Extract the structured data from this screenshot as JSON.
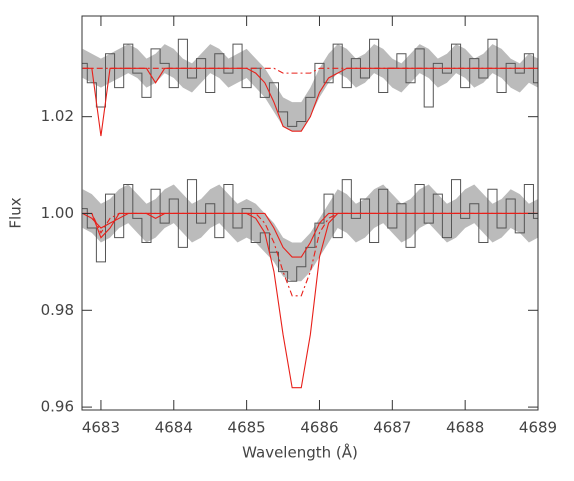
{
  "chart_data": {
    "type": "spectrum",
    "x_label": "Wavelength (Å)",
    "y_label": "Flux",
    "xlim": [
      4682.74,
      4689.0
    ],
    "ylim": [
      0.9594,
      1.0408
    ],
    "xticks": [
      4683,
      4684,
      4685,
      4686,
      4687,
      4688,
      4689
    ],
    "yticks": [
      0.96,
      0.98,
      {
        "value": 1,
        "label": "1.00"
      },
      1.02
    ],
    "x": [
      4682.75,
      4682.875,
      4683,
      4683.125,
      4683.25,
      4683.375,
      4683.5,
      4683.625,
      4683.75,
      4683.875,
      4684,
      4684.125,
      4684.25,
      4684.375,
      4684.5,
      4684.625,
      4684.75,
      4684.875,
      4685,
      4685.125,
      4685.25,
      4685.375,
      4685.5,
      4685.625,
      4685.75,
      4685.875,
      4686,
      4686.125,
      4686.25,
      4686.375,
      4686.5,
      4686.625,
      4686.75,
      4686.875,
      4687,
      4687.125,
      4687.25,
      4687.375,
      4687.5,
      4687.625,
      4687.75,
      4687.875,
      4688,
      4688.125,
      4688.25,
      4688.375,
      4688.5,
      4688.625,
      4688.75,
      4688.875,
      4689
    ],
    "series": [
      {
        "style": "band",
        "color": "#bbbbbb",
        "lower": [
          1.028,
          1.027,
          1.026,
          1.027,
          1.028,
          1.029,
          1.028,
          1.026,
          1.027,
          1.029,
          1.028,
          1.026,
          1.025,
          1.027,
          1.029,
          1.028,
          1.026,
          1.027,
          1.028,
          1.026,
          1.024,
          1.021,
          1.018,
          1.017,
          1.017,
          1.02,
          1.024,
          1.027,
          1.029,
          1.028,
          1.026,
          1.027,
          1.029,
          1.028,
          1.026,
          1.025,
          1.027,
          1.029,
          1.028,
          1.026,
          1.027,
          1.029,
          1.028,
          1.026,
          1.027,
          1.029,
          1.028,
          1.026,
          1.025,
          1.027,
          1.026
        ],
        "upper": [
          1.034,
          1.033,
          1.032,
          1.033,
          1.034,
          1.035,
          1.034,
          1.032,
          1.033,
          1.035,
          1.034,
          1.032,
          1.031,
          1.033,
          1.035,
          1.034,
          1.032,
          1.033,
          1.034,
          1.032,
          1.03,
          1.027,
          1.024,
          1.023,
          1.023,
          1.026,
          1.03,
          1.033,
          1.035,
          1.034,
          1.032,
          1.033,
          1.035,
          1.034,
          1.032,
          1.031,
          1.033,
          1.035,
          1.034,
          1.032,
          1.033,
          1.035,
          1.034,
          1.032,
          1.033,
          1.035,
          1.034,
          1.032,
          1.031,
          1.033,
          1.032
        ]
      },
      {
        "style": "band",
        "color": "#bbbbbb",
        "lower": [
          0.997,
          0.996,
          0.994,
          0.995,
          0.997,
          0.998,
          0.996,
          0.994,
          0.995,
          0.997,
          0.998,
          0.996,
          0.994,
          0.995,
          0.997,
          0.998,
          0.996,
          0.994,
          0.995,
          0.994,
          0.992,
          0.99,
          0.987,
          0.986,
          0.986,
          0.988,
          0.991,
          0.994,
          0.997,
          0.996,
          0.994,
          0.995,
          0.997,
          0.998,
          0.996,
          0.994,
          0.995,
          0.997,
          0.998,
          0.996,
          0.994,
          0.995,
          0.997,
          0.998,
          0.996,
          0.994,
          0.995,
          0.997,
          0.996,
          0.994,
          0.995
        ],
        "upper": [
          1.005,
          1.004,
          1.002,
          1.003,
          1.005,
          1.006,
          1.004,
          1.002,
          1.003,
          1.005,
          1.006,
          1.004,
          1.002,
          1.003,
          1.005,
          1.006,
          1.004,
          1.002,
          1.003,
          1.002,
          1.0,
          0.998,
          0.995,
          0.994,
          0.994,
          0.996,
          0.999,
          1.002,
          1.005,
          1.004,
          1.002,
          1.003,
          1.005,
          1.006,
          1.004,
          1.002,
          1.003,
          1.005,
          1.006,
          1.004,
          1.002,
          1.003,
          1.005,
          1.006,
          1.004,
          1.002,
          1.003,
          1.005,
          1.004,
          1.002,
          1.003
        ]
      },
      {
        "style": "steps",
        "color": "#555555",
        "values": [
          1.031,
          1.027,
          1.022,
          1.033,
          1.026,
          1.035,
          1.029,
          1.024,
          1.034,
          1.031,
          1.026,
          1.036,
          1.028,
          1.032,
          1.025,
          1.033,
          1.029,
          1.035,
          1.026,
          1.03,
          1.024,
          1.027,
          1.021,
          1.018,
          1.019,
          1.024,
          1.031,
          1.027,
          1.035,
          1.026,
          1.032,
          1.028,
          1.036,
          1.025,
          1.03,
          1.033,
          1.027,
          1.034,
          1.022,
          1.031,
          1.029,
          1.035,
          1.026,
          1.032,
          1.028,
          1.036,
          1.025,
          1.031,
          1.029,
          1.033,
          1.027
        ]
      },
      {
        "style": "steps",
        "color": "#555555",
        "values": [
          1.001,
          0.997,
          0.99,
          1.004,
          0.995,
          1.006,
          0.999,
          0.994,
          1.005,
          0.998,
          1.003,
          0.993,
          1.007,
          0.998,
          1.002,
          0.995,
          1.006,
          0.997,
          1.001,
          0.994,
          0.996,
          0.992,
          0.988,
          0.986,
          0.989,
          0.993,
          0.998,
          1.004,
          0.995,
          1.007,
          0.999,
          1.003,
          0.994,
          1.005,
          0.997,
          1.002,
          0.993,
          1.006,
          0.998,
          1.004,
          0.995,
          1.007,
          0.999,
          1.002,
          0.994,
          1.005,
          0.997,
          1.003,
          0.996,
          1.006,
          0.999
        ]
      },
      {
        "style": "line",
        "color": "#e8201a",
        "dash": true,
        "values": [
          1.03,
          1.03,
          1.03,
          1.03,
          1.03,
          1.03,
          1.03,
          1.03,
          1.03,
          1.03,
          1.03,
          1.03,
          1.03,
          1.03,
          1.03,
          1.03,
          1.03,
          1.03,
          1.03,
          1.03,
          1.03,
          1.03,
          1.029,
          1.029,
          1.029,
          1.029,
          1.03,
          1.03,
          1.03,
          1.03,
          1.03,
          1.03,
          1.03,
          1.03,
          1.03,
          1.03,
          1.03,
          1.03,
          1.03,
          1.03,
          1.03,
          1.03,
          1.03,
          1.03,
          1.03,
          1.03,
          1.03,
          1.03,
          1.03,
          1.03,
          1.03
        ]
      },
      {
        "style": "line",
        "color": "#e8201a",
        "values": [
          1.03,
          1.03,
          1.016,
          1.03,
          1.03,
          1.03,
          1.03,
          1.03,
          1.027,
          1.03,
          1.03,
          1.03,
          1.03,
          1.03,
          1.03,
          1.03,
          1.03,
          1.03,
          1.03,
          1.029,
          1.027,
          1.023,
          1.018,
          1.017,
          1.017,
          1.02,
          1.025,
          1.028,
          1.029,
          1.03,
          1.03,
          1.03,
          1.03,
          1.03,
          1.03,
          1.03,
          1.03,
          1.03,
          1.03,
          1.03,
          1.03,
          1.03,
          1.03,
          1.03,
          1.03,
          1.03,
          1.03,
          1.03,
          1.03,
          1.03,
          1.03
        ]
      },
      {
        "style": "line",
        "color": "#e8201a",
        "values": [
          1.0,
          0.999,
          0.997,
          0.998,
          0.999,
          1.0,
          1.0,
          1.0,
          0.999,
          1.0,
          1.0,
          1.0,
          1.0,
          1.0,
          1.0,
          1.0,
          1.0,
          1.0,
          1.0,
          0.999,
          0.996,
          0.988,
          0.975,
          0.964,
          0.964,
          0.975,
          0.991,
          0.998,
          1.0,
          1.0,
          1.0,
          1.0,
          1.0,
          1.0,
          1.0,
          1.0,
          1.0,
          1.0,
          1.0,
          1.0,
          1.0,
          1.0,
          1.0,
          1.0,
          1.0,
          1.0,
          1.0,
          1.0,
          1.0,
          1.0,
          1.0
        ]
      },
      {
        "style": "line",
        "color": "#e8201a",
        "dash": true,
        "values": [
          1.0,
          1.0,
          0.996,
          0.999,
          1.0,
          1.0,
          1.0,
          1.0,
          1.0,
          1.0,
          1.0,
          1.0,
          1.0,
          1.0,
          1.0,
          1.0,
          1.0,
          1.0,
          1.0,
          1.0,
          0.998,
          0.994,
          0.988,
          0.983,
          0.983,
          0.988,
          0.996,
          0.999,
          1.0,
          1.0,
          1.0,
          1.0,
          1.0,
          1.0,
          1.0,
          1.0,
          1.0,
          1.0,
          1.0,
          1.0,
          1.0,
          1.0,
          1.0,
          1.0,
          1.0,
          1.0,
          1.0,
          1.0,
          1.0,
          1.0,
          1.0
        ]
      },
      {
        "style": "line",
        "color": "#e8201a",
        "values": [
          1.0,
          1.0,
          0.995,
          0.997,
          1.0,
          1.0,
          1.0,
          1.0,
          1.0,
          1.0,
          1.0,
          1.0,
          1.0,
          1.0,
          1.0,
          1.0,
          1.0,
          1.0,
          1.0,
          1.0,
          1.0,
          0.997,
          0.993,
          0.991,
          0.991,
          0.994,
          0.998,
          1.0,
          1.0,
          1.0,
          1.0,
          1.0,
          1.0,
          1.0,
          1.0,
          1.0,
          1.0,
          1.0,
          1.0,
          1.0,
          1.0,
          1.0,
          1.0,
          1.0,
          1.0,
          1.0,
          1.0,
          1.0,
          1.0,
          1.0,
          1.0
        ]
      }
    ]
  }
}
